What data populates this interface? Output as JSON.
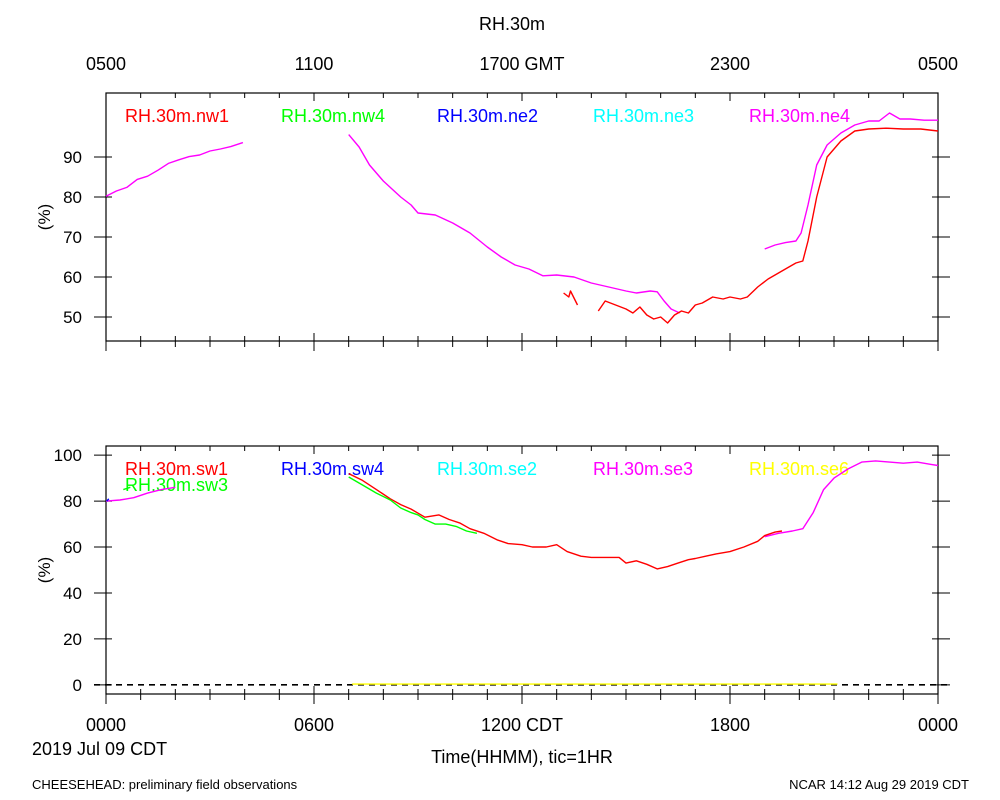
{
  "header": {
    "title": "RH.30m",
    "gmt_ticks": [
      "0500",
      "1100",
      "1700 GMT",
      "2300",
      "0500"
    ]
  },
  "footer": {
    "date_label": "2019 Jul 09 CDT",
    "xlabel": "Time(HHMM), tic=1HR",
    "left_note": "CHEESEHEAD: preliminary field observations",
    "right_note": "NCAR 14:12 Aug 29 2019 CDT",
    "cdt_ticks": [
      "0000",
      "0600",
      "1200 CDT",
      "1800",
      "0000"
    ]
  },
  "chart_data": [
    {
      "type": "line",
      "panel": "top",
      "ylabel": "(%)",
      "xlim": [
        0,
        24
      ],
      "ylim": [
        44,
        106
      ],
      "y_ticks": [
        50,
        60,
        70,
        80,
        90
      ],
      "y_tick_labels": [
        "50",
        "60",
        "70",
        "80",
        "90"
      ],
      "legend": [
        "RH.30m.nw1",
        "RH.30m.nw4",
        "RH.30m.ne2",
        "RH.30m.ne3",
        "RH.30m.ne4"
      ],
      "series": [
        {
          "name": "RH.30m.ne4",
          "color": "#ff00ff",
          "segments": [
            [
              [
                0,
                80.2
              ],
              [
                0.3,
                81.5
              ],
              [
                0.6,
                82.4
              ],
              [
                0.9,
                84.4
              ],
              [
                1.2,
                85.2
              ],
              [
                1.5,
                86.7
              ],
              [
                1.8,
                88.4
              ],
              [
                2.1,
                89.3
              ],
              [
                2.4,
                90.1
              ],
              [
                2.7,
                90.5
              ],
              [
                3.0,
                91.5
              ],
              [
                3.3,
                92.0
              ],
              [
                3.6,
                92.6
              ],
              [
                3.95,
                93.6
              ]
            ],
            [
              [
                7.0,
                95.6
              ],
              [
                7.3,
                92.5
              ],
              [
                7.6,
                88.0
              ],
              [
                8.0,
                84.0
              ],
              [
                8.5,
                80.0
              ],
              [
                8.8,
                78.0
              ],
              [
                9.0,
                76.0
              ],
              [
                9.5,
                75.5
              ],
              [
                10.0,
                73.5
              ],
              [
                10.5,
                71.0
              ],
              [
                11.0,
                67.5
              ],
              [
                11.4,
                65.0
              ],
              [
                11.8,
                63.0
              ],
              [
                12.2,
                62.0
              ],
              [
                12.6,
                60.3
              ],
              [
                13.0,
                60.5
              ],
              [
                13.5,
                60.0
              ],
              [
                14.0,
                58.5
              ],
              [
                14.5,
                57.5
              ],
              [
                15.0,
                56.5
              ],
              [
                15.3,
                56.0
              ],
              [
                15.7,
                56.5
              ],
              [
                15.9,
                56.3
              ],
              [
                16.1,
                54.0
              ],
              [
                16.3,
                52.0
              ],
              [
                16.55,
                51.0
              ]
            ],
            [
              [
                19.0,
                67.0
              ],
              [
                19.3,
                68.0
              ],
              [
                19.6,
                68.6
              ],
              [
                19.9,
                69.0
              ],
              [
                20.05,
                71.0
              ],
              [
                20.25,
                78.0
              ],
              [
                20.5,
                88.0
              ],
              [
                20.8,
                93.0
              ],
              [
                21.2,
                96.0
              ],
              [
                21.6,
                98.0
              ],
              [
                22.0,
                99.0
              ],
              [
                22.3,
                99.0
              ],
              [
                22.6,
                101.0
              ],
              [
                22.9,
                99.5
              ],
              [
                23.2,
                99.5
              ],
              [
                23.6,
                99.2
              ],
              [
                24.0,
                99.2
              ]
            ]
          ]
        },
        {
          "name": "RH.30m.nw1",
          "color": "#ff0000",
          "segments": [
            [
              [
                13.2,
                56.0
              ],
              [
                13.35,
                55.0
              ],
              [
                13.4,
                56.5
              ],
              [
                13.6,
                53.0
              ]
            ],
            [
              [
                14.2,
                51.5
              ],
              [
                14.4,
                54.0
              ],
              [
                14.7,
                53.0
              ],
              [
                15.0,
                52.0
              ],
              [
                15.2,
                51.0
              ],
              [
                15.4,
                52.5
              ],
              [
                15.6,
                50.5
              ],
              [
                15.8,
                49.5
              ],
              [
                16.0,
                50.0
              ],
              [
                16.2,
                48.5
              ],
              [
                16.4,
                50.5
              ],
              [
                16.6,
                51.5
              ],
              [
                16.8,
                51.0
              ],
              [
                17.0,
                53.0
              ],
              [
                17.2,
                53.5
              ],
              [
                17.5,
                55.0
              ],
              [
                17.8,
                54.5
              ],
              [
                18.0,
                55.0
              ],
              [
                18.3,
                54.5
              ],
              [
                18.5,
                55.0
              ],
              [
                18.8,
                57.5
              ],
              [
                19.1,
                59.5
              ],
              [
                19.4,
                61.0
              ],
              [
                19.7,
                62.5
              ],
              [
                19.9,
                63.5
              ],
              [
                20.1,
                64.0
              ],
              [
                20.25,
                69.0
              ],
              [
                20.5,
                80.0
              ],
              [
                20.8,
                90.0
              ],
              [
                21.2,
                94.0
              ],
              [
                21.6,
                96.5
              ],
              [
                22.0,
                97.0
              ],
              [
                22.5,
                97.2
              ],
              [
                23.0,
                97.0
              ],
              [
                23.5,
                97.0
              ],
              [
                24.0,
                96.5
              ]
            ]
          ]
        }
      ]
    },
    {
      "type": "line",
      "panel": "bottom",
      "ylabel": "(%)",
      "xlim": [
        0,
        24
      ],
      "ylim": [
        -4,
        104
      ],
      "y_ticks": [
        0,
        20,
        40,
        60,
        80,
        100
      ],
      "y_tick_labels": [
        "0",
        "20",
        "40",
        "60",
        "80",
        "100"
      ],
      "reference_line": 0,
      "legend": [
        "RH.30m.sw1",
        "RH.30m.sw4",
        "RH.30m.se2",
        "RH.30m.se3",
        "RH.30m.se6",
        "RH.30m.sw3"
      ],
      "series": [
        {
          "name": "RH.30m.se3",
          "color": "#ff00ff",
          "segments": [
            [
              [
                0,
                80.0
              ],
              [
                0.4,
                80.5
              ],
              [
                0.8,
                81.5
              ],
              [
                1.2,
                83.5
              ],
              [
                1.6,
                85.0
              ],
              [
                2.0,
                86.0
              ]
            ],
            [
              [
                19.0,
                64.5
              ],
              [
                19.4,
                66.0
              ],
              [
                19.8,
                67.0
              ],
              [
                20.1,
                68.0
              ],
              [
                20.4,
                75.0
              ],
              [
                20.7,
                85.0
              ],
              [
                21.0,
                90.0
              ],
              [
                21.4,
                94.0
              ],
              [
                21.8,
                97.0
              ],
              [
                22.2,
                97.5
              ],
              [
                22.6,
                97.0
              ],
              [
                23.0,
                96.5
              ],
              [
                23.4,
                97.0
              ],
              [
                23.8,
                96.0
              ],
              [
                24.0,
                95.5
              ]
            ]
          ]
        },
        {
          "name": "RH.30m.sw1",
          "color": "#ff0000",
          "segments": [
            [
              [
                7.0,
                92.0
              ],
              [
                7.4,
                89.0
              ],
              [
                7.8,
                85.0
              ],
              [
                8.2,
                81.0
              ],
              [
                8.5,
                78.5
              ],
              [
                8.8,
                76.5
              ],
              [
                9.2,
                73.0
              ],
              [
                9.6,
                74.0
              ],
              [
                9.9,
                72.0
              ],
              [
                10.2,
                70.5
              ],
              [
                10.5,
                68.0
              ],
              [
                10.9,
                66.0
              ],
              [
                11.3,
                63.0
              ],
              [
                11.6,
                61.5
              ],
              [
                12.0,
                61.0
              ],
              [
                12.3,
                60.0
              ],
              [
                12.7,
                60.0
              ],
              [
                13.0,
                61.0
              ],
              [
                13.3,
                58.0
              ],
              [
                13.7,
                56.0
              ],
              [
                14.0,
                55.5
              ],
              [
                14.4,
                55.5
              ],
              [
                14.8,
                55.5
              ],
              [
                15.0,
                53.0
              ],
              [
                15.3,
                54.0
              ],
              [
                15.6,
                52.5
              ],
              [
                15.9,
                50.5
              ],
              [
                16.2,
                51.5
              ],
              [
                16.5,
                53.0
              ],
              [
                16.8,
                54.5
              ],
              [
                17.0,
                55.0
              ],
              [
                17.3,
                56.0
              ],
              [
                17.6,
                57.0
              ],
              [
                18.0,
                58.0
              ],
              [
                18.4,
                60.0
              ],
              [
                18.8,
                62.5
              ],
              [
                19.0,
                65.0
              ],
              [
                19.3,
                66.5
              ],
              [
                19.5,
                67.0
              ]
            ]
          ]
        },
        {
          "name": "RH.30m.sw3",
          "color": "#00ff00",
          "segments": [
            [
              [
                0.5,
                85.0
              ],
              [
                0.7,
                86.0
              ]
            ],
            [
              [
                7.0,
                90.5
              ],
              [
                7.4,
                87.0
              ],
              [
                7.8,
                83.5
              ],
              [
                8.2,
                80.5
              ],
              [
                8.5,
                77.0
              ],
              [
                8.8,
                75.0
              ],
              [
                9.0,
                74.0
              ],
              [
                9.2,
                72.0
              ],
              [
                9.5,
                70.0
              ],
              [
                9.8,
                70.0
              ],
              [
                10.1,
                69.0
              ],
              [
                10.4,
                67.0
              ],
              [
                10.7,
                66.0
              ]
            ]
          ]
        },
        {
          "name": "RH.30m.sw4",
          "color": "#0000ff",
          "segments": [
            [
              [
                0.02,
                80.0
              ],
              [
                0.08,
                81.0
              ]
            ]
          ]
        },
        {
          "name": "RH.30m.se6",
          "color": "#ffff00",
          "segments": [
            [
              [
                7.1,
                0.3
              ],
              [
                21.1,
                0.3
              ]
            ]
          ]
        }
      ]
    }
  ]
}
